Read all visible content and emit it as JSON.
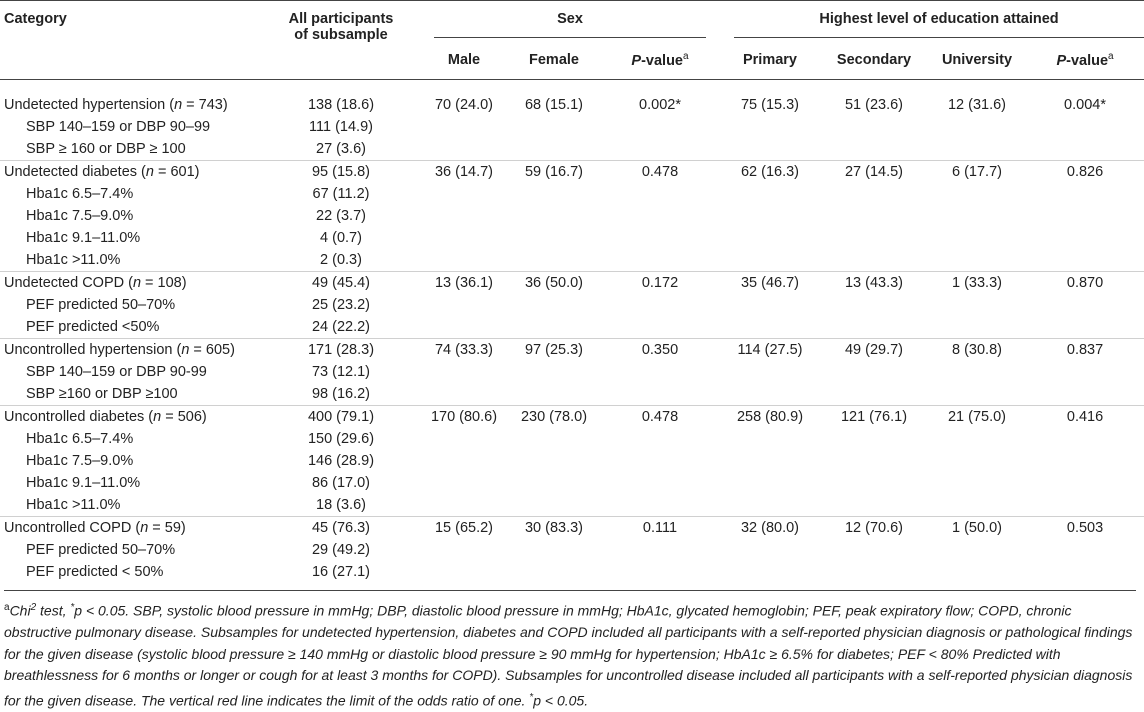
{
  "header": {
    "category": "Category",
    "all_line1": "All participants",
    "all_line2": "of subsample",
    "sex": "Sex",
    "education": "Highest level of education attained",
    "male": "Male",
    "female": "Female",
    "pvalue_p": "P",
    "pvalue_rest": "-value",
    "pvalue_sup": "a",
    "primary": "Primary",
    "secondary": "Secondary",
    "university": "University"
  },
  "groups": [
    {
      "label_pre": "Undetected hypertension (",
      "label_n": "n",
      "label_post": " = 743)",
      "all": "138 (18.6)",
      "male": "70 (24.0)",
      "female": "68 (15.1)",
      "p_sex": "0.002*",
      "primary": "75 (15.3)",
      "secondary": "51 (23.6)",
      "university": "12 (31.6)",
      "p_edu": "0.004*",
      "subs": [
        {
          "label": "SBP 140–159 or DBP 90–99",
          "all": "111 (14.9)"
        },
        {
          "label": "SBP ≥ 160 or DBP ≥ 100",
          "all": "27 (3.6)"
        }
      ]
    },
    {
      "label_pre": "Undetected diabetes (",
      "label_n": "n",
      "label_post": " = 601)",
      "all": "95 (15.8)",
      "male": "36 (14.7)",
      "female": "59 (16.7)",
      "p_sex": "0.478",
      "primary": "62 (16.3)",
      "secondary": "27 (14.5)",
      "university": "6 (17.7)",
      "p_edu": "0.826",
      "subs": [
        {
          "label": "Hba1c 6.5–7.4%",
          "all": "67 (11.2)"
        },
        {
          "label": "Hba1c 7.5–9.0%",
          "all": "22 (3.7)"
        },
        {
          "label": "Hba1c 9.1–11.0%",
          "all": "4 (0.7)"
        },
        {
          "label": "Hba1c >11.0%",
          "all": "2 (0.3)"
        }
      ]
    },
    {
      "label_pre": "Undetected COPD (",
      "label_n": "n",
      "label_post": " = 108)",
      "all": "49 (45.4)",
      "male": "13 (36.1)",
      "female": "36 (50.0)",
      "p_sex": "0.172",
      "primary": "35 (46.7)",
      "secondary": "13 (43.3)",
      "university": "1 (33.3)",
      "p_edu": "0.870",
      "subs": [
        {
          "label": "PEF predicted 50–70%",
          "all": "25 (23.2)"
        },
        {
          "label": "PEF predicted <50%",
          "all": "24 (22.2)"
        }
      ]
    },
    {
      "label_pre": "Uncontrolled hypertension (",
      "label_n": "n",
      "label_post": " = 605)",
      "all": "171 (28.3)",
      "male": "74 (33.3)",
      "female": "97 (25.3)",
      "p_sex": "0.350",
      "primary": "114 (27.5)",
      "secondary": "49 (29.7)",
      "university": "8 (30.8)",
      "p_edu": "0.837",
      "subs": [
        {
          "label": "SBP 140–159 or DBP 90-99",
          "all": "73 (12.1)"
        },
        {
          "label": "SBP ≥160 or DBP ≥100",
          "all": "98 (16.2)"
        }
      ]
    },
    {
      "label_pre": "Uncontrolled diabetes (",
      "label_n": "n",
      "label_post": " = 506)",
      "all": "400 (79.1)",
      "male": "170 (80.6)",
      "female": "230 (78.0)",
      "p_sex": "0.478",
      "primary": "258 (80.9)",
      "secondary": "121 (76.1)",
      "university": "21 (75.0)",
      "p_edu": "0.416",
      "subs": [
        {
          "label": "Hba1c 6.5–7.4%",
          "all": "150 (29.6)"
        },
        {
          "label": "Hba1c 7.5–9.0%",
          "all": "146 (28.9)"
        },
        {
          "label": "Hba1c 9.1–11.0%",
          "all": "86 (17.0)"
        },
        {
          "label": "Hba1c >11.0%",
          "all": "18 (3.6)"
        }
      ]
    },
    {
      "label_pre": "Uncontrolled COPD (",
      "label_n": "n",
      "label_post": " = 59)",
      "all": "45 (76.3)",
      "male": "15 (65.2)",
      "female": "30 (83.3)",
      "p_sex": "0.111",
      "primary": "32 (80.0)",
      "secondary": "12 (70.6)",
      "university": "1 (50.0)",
      "p_edu": "0.503",
      "subs": [
        {
          "label": "PEF predicted 50–70%",
          "all": "29 (49.2)"
        },
        {
          "label": "PEF predicted < 50%",
          "all": "16 (27.1)"
        }
      ]
    }
  ],
  "footnote": {
    "sup_a": "a",
    "chi": "Chi",
    "chi_sup": "2",
    "text1": " test, ",
    "star": "*",
    "text2": "p < 0.05. SBP, systolic blood pressure in mmHg; DBP, diastolic blood pressure in mmHg; HbA1c, glycated hemoglobin; PEF, peak expiratory flow; COPD, chronic obstructive pulmonary disease. Subsamples for undetected hypertension, diabetes and COPD included all participants with a self-reported physician diagnosis or pathological findings for the given disease (systolic blood pressure ≥ 140 mmHg or diastolic blood pressure ≥ 90 mmHg for hypertension; HbA1c ≥ 6.5% for diabetes; PEF < 80% Predicted with breathlessness for 6 months or longer or cough for at least 3 months for COPD). Subsamples for uncontrolled disease included all participants with a self-reported physician diagnosis for the given disease. The vertical red line indicates the limit of the odds ratio of one. ",
    "text3": "p < 0.05."
  }
}
